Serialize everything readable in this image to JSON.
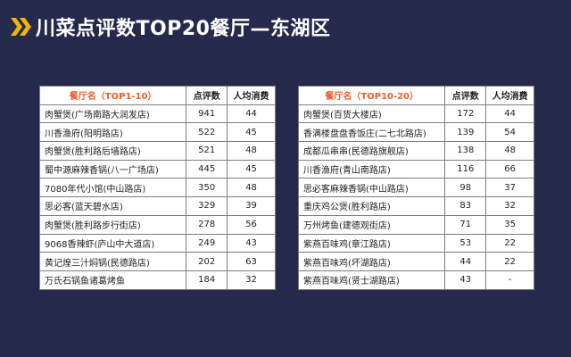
{
  "title": "川菜点评数TOP20餐厅—东湖区",
  "accent_color": "#f4b400",
  "header_color": "#e8602c",
  "left_table": {
    "headers": [
      "餐厅名（TOP1-10）",
      "点评数",
      "人均消费"
    ],
    "rows": [
      [
        "肉蟹煲(广场南路大润发店)",
        "941",
        "44"
      ],
      [
        "川香渔府(阳明路店)",
        "522",
        "45"
      ],
      [
        "肉蟹煲(胜利路后墙路店)",
        "521",
        "48"
      ],
      [
        "蜀中源麻辣香锅(八一广场店)",
        "445",
        "45"
      ],
      [
        "7080年代小馆(中山路店)",
        "350",
        "48"
      ],
      [
        "思必客(蓝天碧水店)",
        "329",
        "39"
      ],
      [
        "肉蟹煲(胜利路步行街店)",
        "278",
        "56"
      ],
      [
        "9068香辣虾(庐山中大道店)",
        "249",
        "43"
      ],
      [
        "黄记煌三汁焖锅(民德路店)",
        "202",
        "63"
      ],
      [
        "万氏石锅鱼诸葛烤鱼",
        "184",
        "32"
      ]
    ]
  },
  "right_table": {
    "headers": [
      "餐厅名（TOP10-20）",
      "点评数",
      "人均消费"
    ],
    "rows": [
      [
        "肉蟹煲(百货大楼店)",
        "172",
        "44"
      ],
      [
        "香满楼盘盘香饭庄(二七北路店)",
        "139",
        "54"
      ],
      [
        "成都瓜串串(民德路旗舰店)",
        "138",
        "48"
      ],
      [
        "川香渔府(青山南路店)",
        "116",
        "66"
      ],
      [
        "思必客麻辣香锅(中山路店)",
        "98",
        "37"
      ],
      [
        "重庆鸡公煲(胜利路店)",
        "83",
        "32"
      ],
      [
        "万州烤鱼(建德观街店)",
        "71",
        "35"
      ],
      [
        "紫燕百味鸡(章江路店)",
        "53",
        "22"
      ],
      [
        "紫燕百味鸡(坏湖路店)",
        "44",
        "22"
      ],
      [
        "紫燕百味鸡(贤士湖路店)",
        "43",
        "-"
      ]
    ]
  }
}
